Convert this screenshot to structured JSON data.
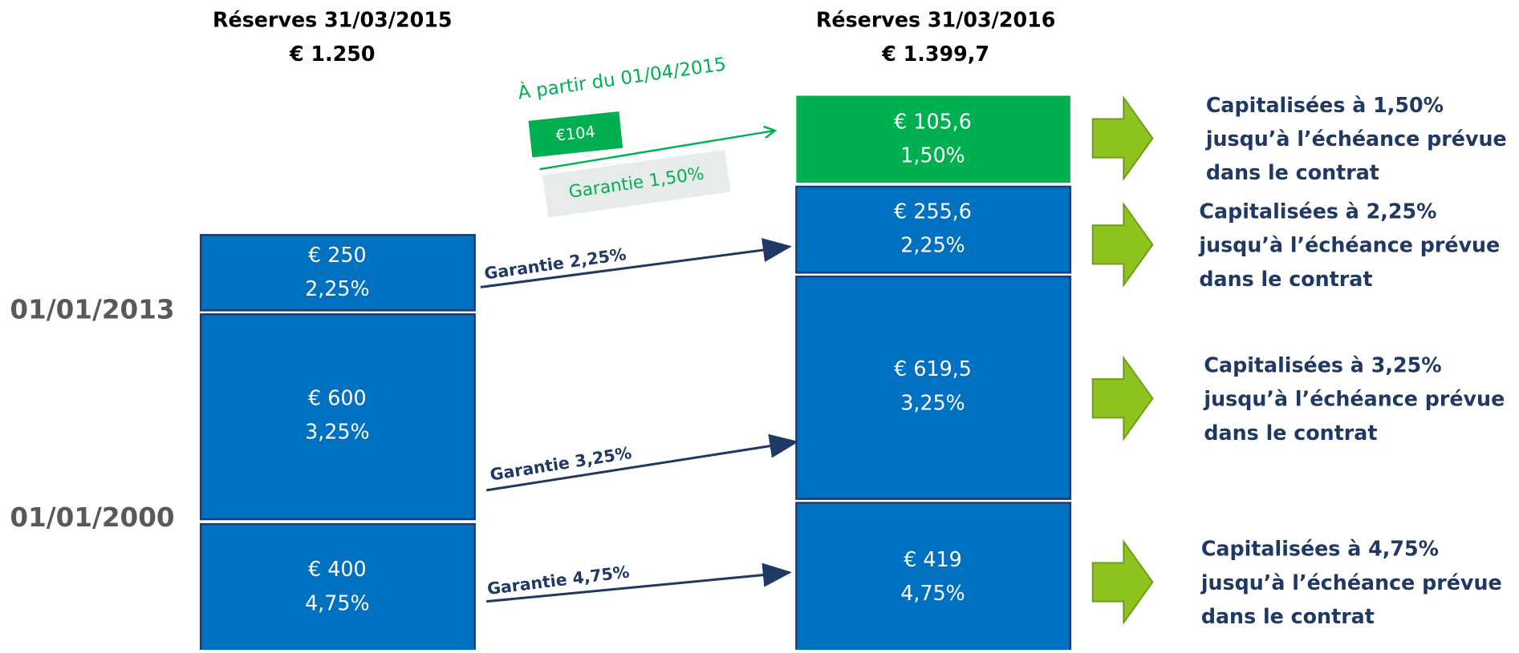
{
  "header_2015": {
    "title": "Réserves 31/03/2015",
    "total": "€ 1.250"
  },
  "header_2016": {
    "title": "Réserves 31/03/2016",
    "total": "€ 1.399,7"
  },
  "dates": [
    "01/01/2013",
    "01/01/2000"
  ],
  "boxes_2015": [
    {
      "amount": "€ 250",
      "rate": "2,25%"
    },
    {
      "amount": "€ 600",
      "rate": "3,25%"
    },
    {
      "amount": "€ 400",
      "rate": "4,75%"
    }
  ],
  "new_contribution": {
    "caption": "À partir du  01/04/2015",
    "amount": "€104",
    "guarantee": "Garantie  1,50%"
  },
  "boxes_2016": [
    {
      "amount": "€ 105,6",
      "rate": "1,50%"
    },
    {
      "amount": "€ 255,6",
      "rate": "2,25%"
    },
    {
      "amount": "€ 619,5",
      "rate": "3,25%"
    },
    {
      "amount": "€ 419",
      "rate": "4,75%"
    }
  ],
  "arrows": [
    "Garantie 2,25%",
    "Garantie 3,25%",
    "Garantie 4,75%"
  ],
  "outcomes": [
    [
      "Capitalisées à 1,50%",
      "jusqu’à l’échéance prévue",
      "dans le contrat"
    ],
    [
      "Capitalisées à 2,25%",
      "jusqu’à l’échéance prévue",
      "dans le contrat"
    ],
    [
      "Capitalisées à 3,25%",
      "jusqu’à l’échéance prévue",
      "dans le contrat"
    ],
    [
      "Capitalisées à 4,75%",
      "jusqu’à l’échéance prévue",
      "dans le contrat"
    ]
  ]
}
